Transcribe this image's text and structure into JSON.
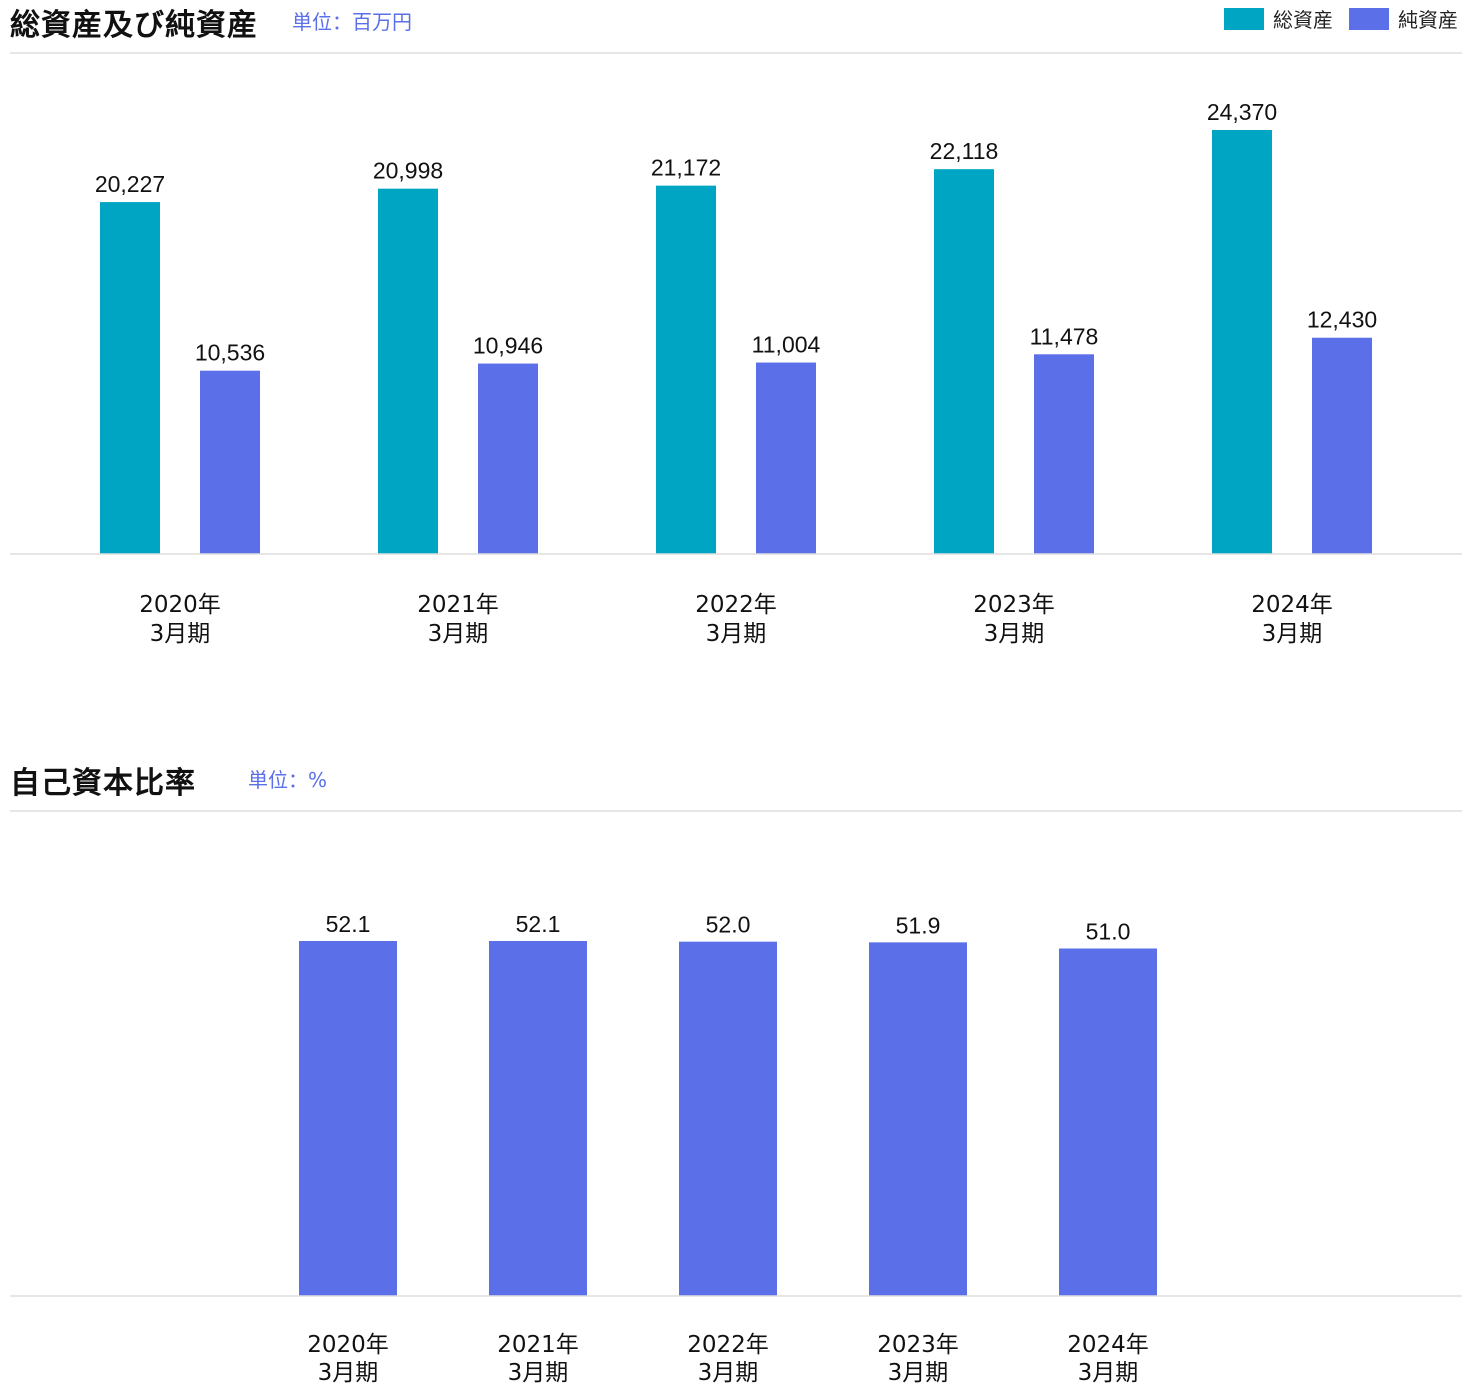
{
  "chart_data": [
    {
      "type": "bar",
      "title": "総資産及び純資産",
      "unit_label": "単位：百万円",
      "categories": [
        [
          "2020年",
          "3月期"
        ],
        [
          "2021年",
          "3月期"
        ],
        [
          "2022年",
          "3月期"
        ],
        [
          "2023年",
          "3月期"
        ],
        [
          "2024年",
          "3月期"
        ]
      ],
      "series": [
        {
          "name": "総資産",
          "color": "#00a5c3",
          "values": [
            20227,
            20998,
            21172,
            22118,
            24370
          ],
          "labels": [
            "20,227",
            "20,998",
            "21,172",
            "22,118",
            "24,370"
          ]
        },
        {
          "name": "純資産",
          "color": "#5b6fe8",
          "values": [
            10536,
            10946,
            11004,
            11478,
            12430
          ],
          "labels": [
            "10,536",
            "10,946",
            "11,004",
            "11,478",
            "12,430"
          ]
        }
      ],
      "ylim": [
        0,
        24370
      ],
      "grid": false,
      "legend_position": "top-right"
    },
    {
      "type": "bar",
      "title": "自己資本比率",
      "unit_label": "単位：%",
      "categories": [
        [
          "2020年",
          "3月期"
        ],
        [
          "2021年",
          "3月期"
        ],
        [
          "2022年",
          "3月期"
        ],
        [
          "2023年",
          "3月期"
        ],
        [
          "2024年",
          "3月期"
        ]
      ],
      "series": [
        {
          "color": "#5b6fe8",
          "values": [
            52.1,
            52.1,
            52.0,
            51.9,
            51.0
          ],
          "labels": [
            "52.1",
            "52.1",
            "52.0",
            "51.9",
            "51.0"
          ]
        }
      ],
      "ylim": [
        0,
        52.1
      ],
      "grid": false
    }
  ]
}
